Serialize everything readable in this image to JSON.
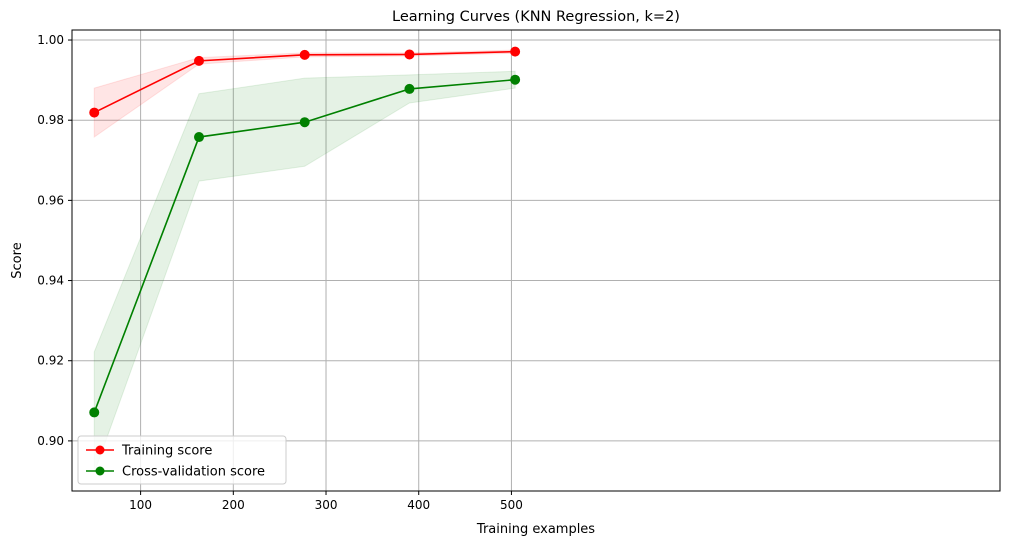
{
  "chart_data": {
    "type": "line",
    "title": "Learning Curves (KNN Regression, k=2)",
    "xlabel": "Training examples",
    "ylabel": "Score",
    "xlim": [
      26,
      1027
    ],
    "ylim": [
      0.8875,
      1.0025
    ],
    "xticks": [
      100,
      200,
      300,
      400,
      500
    ],
    "xtick_labels": [
      "100",
      "200",
      "300",
      "400",
      "500"
    ],
    "yticks": [
      0.9,
      0.92,
      0.94,
      0.96,
      0.98,
      1.0
    ],
    "ytick_labels": [
      "0.90",
      "0.92",
      "0.94",
      "0.96",
      "0.98",
      "1.00"
    ],
    "grid": true,
    "legend_position": "lower-left",
    "x": [
      50,
      163,
      277,
      390,
      504
    ],
    "series": [
      {
        "name": "Training score",
        "color": "#ff0000",
        "values": [
          0.9819,
          0.9948,
          0.9963,
          0.9964,
          0.9971
        ],
        "band_lower": [
          0.9758,
          0.994,
          0.9958,
          0.996,
          0.9967
        ],
        "band_upper": [
          0.988,
          0.9956,
          0.9968,
          0.9968,
          0.9975
        ],
        "band_color": "#ff0000"
      },
      {
        "name": "Cross-validation score",
        "color": "#008000",
        "values": [
          0.9071,
          0.9758,
          0.9795,
          0.9878,
          0.9901
        ],
        "band_lower": [
          0.892,
          0.9648,
          0.9685,
          0.9843,
          0.988
        ],
        "band_upper": [
          0.9222,
          0.9866,
          0.9905,
          0.9913,
          0.9922
        ],
        "band_color": "#008000"
      }
    ]
  }
}
